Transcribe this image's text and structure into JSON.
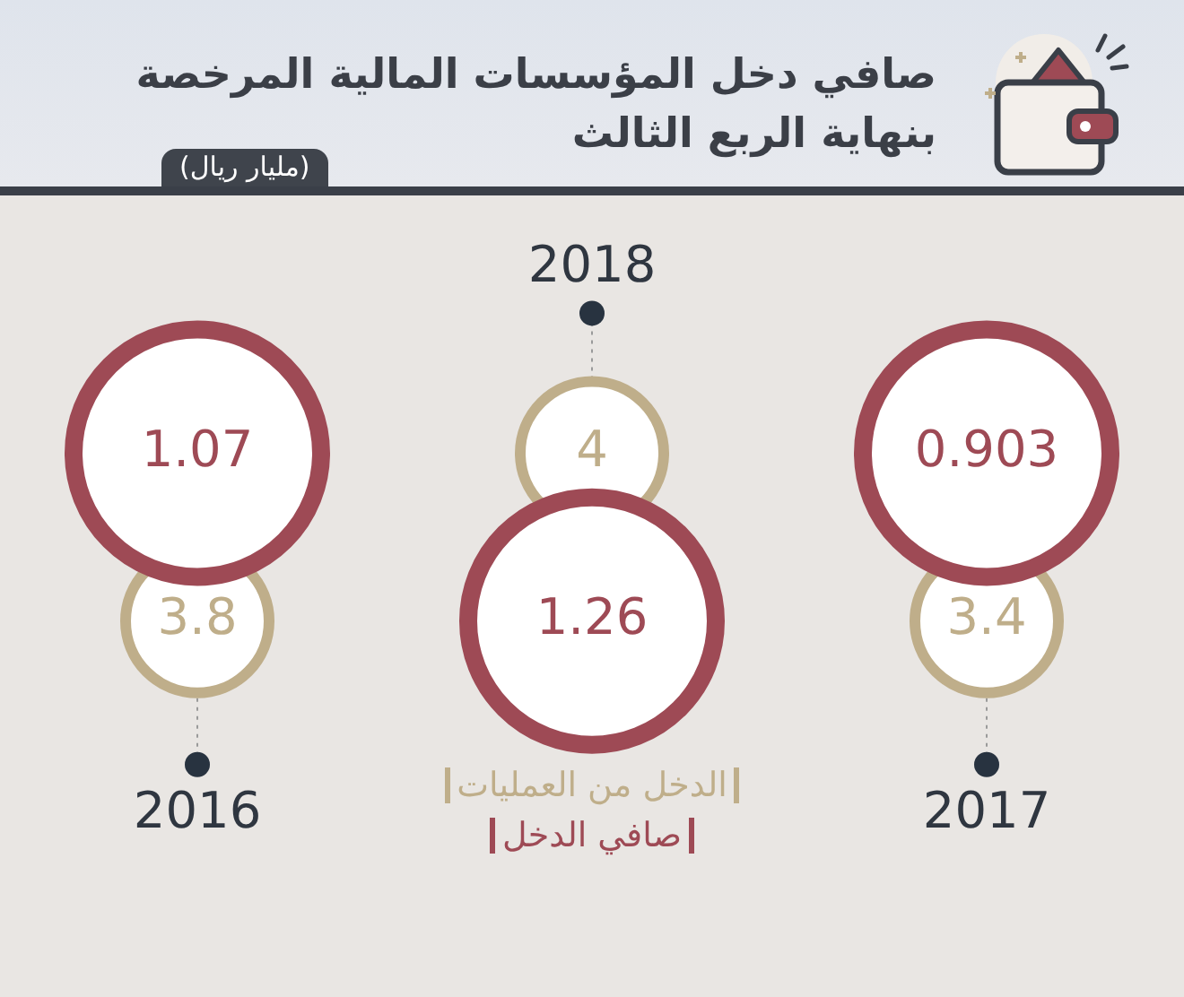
{
  "chart_data": {
    "type": "other",
    "title": "صافي دخل المؤسسات المالية المرخصة بنهاية الربع الثالث",
    "subtitle": "(مليار ريال)",
    "categories": [
      "2016",
      "2018",
      "2017"
    ],
    "series": [
      {
        "name": "الدخل من العمليات",
        "color": "#bfae8a",
        "values": [
          3.8,
          4,
          3.4
        ]
      },
      {
        "name": "صافي الدخل",
        "color": "#9e4a55",
        "values": [
          1.07,
          1.26,
          0.903
        ]
      }
    ],
    "data_labels": true,
    "legend": "bottom"
  }
}
